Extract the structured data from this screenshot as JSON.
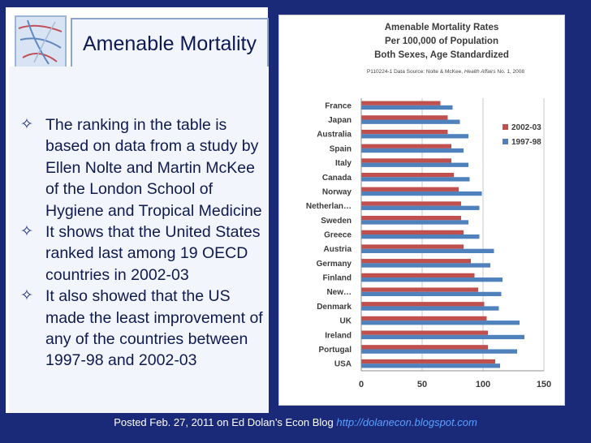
{
  "slide": {
    "title": "Amenable Mortality",
    "bullets": [
      "The ranking in the table is based on data from a study by Ellen Nolte and Martin McKee of the London School of Hygiene and Tropical Medicine",
      "It shows that the United States ranked last among 19 OECD countries in 2002-03",
      "It also showed that the US made the least improvement of any of the countries between 1997-98 and 2002-03"
    ],
    "bullet_icon": "✧"
  },
  "footer": {
    "text": "Posted Feb. 27, 2011 on Ed Dolan’s Econ Blog",
    "link": "http://dolanecon.blogspot.com"
  },
  "chart_data": {
    "type": "bar",
    "orientation": "horizontal",
    "title_lines": [
      "Amenable Mortality Rates",
      "Per 100,000 of Population",
      "Both Sexes, Age Standardized"
    ],
    "source_prefix": "P110224-1 Data Source: Nolte & McKee, ",
    "source_italic": "Health Affairs",
    "source_suffix": " No. 1, 2008",
    "categories": [
      "France",
      "Japan",
      "Australia",
      "Spain",
      "Italy",
      "Canada",
      "Norway",
      "Netherlan…",
      "Sweden",
      "Greece",
      "Austria",
      "Germany",
      "Finland",
      "New…",
      "Denmark",
      "UK",
      "Ireland",
      "Portugal",
      "USA"
    ],
    "series": [
      {
        "name": "2002-03",
        "color": "#c0504d",
        "values": [
          65,
          71,
          71,
          74,
          74,
          76,
          80,
          82,
          82,
          84,
          84,
          90,
          93,
          96,
          101,
          103,
          104,
          104,
          110
        ]
      },
      {
        "name": "1997-98",
        "color": "#4f81bd",
        "values": [
          75,
          81,
          88,
          84,
          88,
          89,
          99,
          97,
          88,
          97,
          109,
          106,
          116,
          115,
          113,
          130,
          134,
          128,
          114
        ]
      }
    ],
    "xlim": [
      0,
      150
    ],
    "xticks": [
      0,
      50,
      100,
      150
    ],
    "grid": true,
    "legend_position": "right"
  }
}
